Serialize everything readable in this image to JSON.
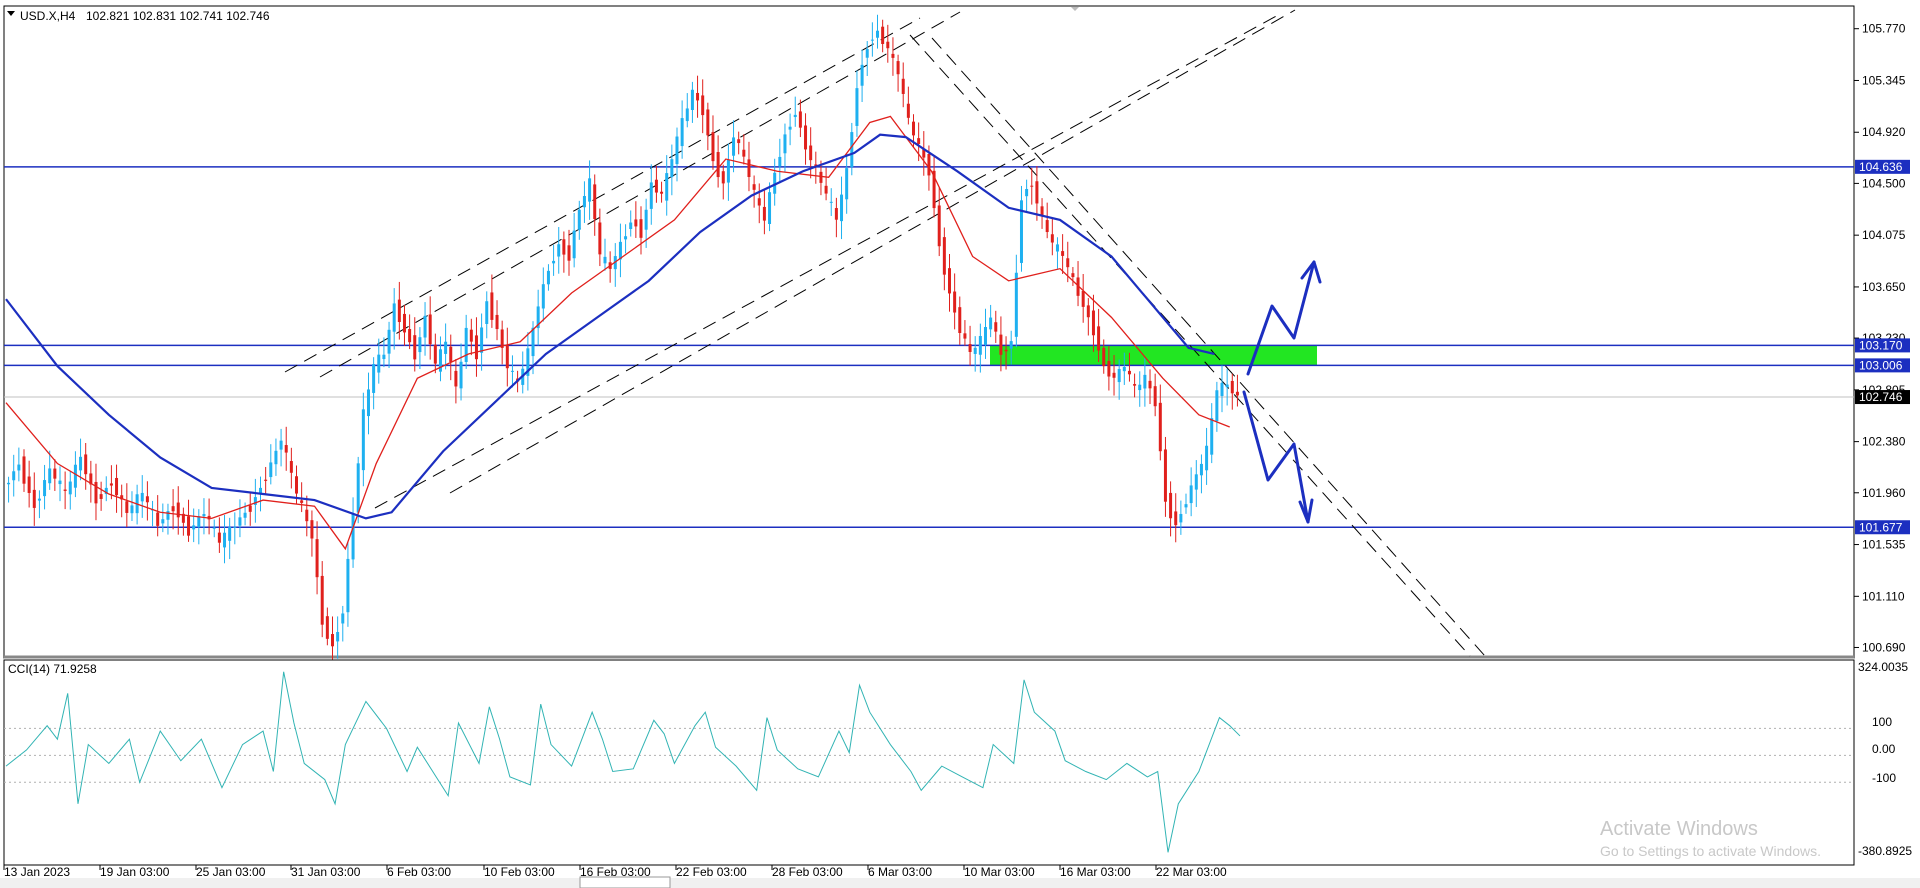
{
  "header": {
    "symbol_timeframe": "USD.X,H4",
    "ohlc": "102.821 102.831 102.741 102.746"
  },
  "indicator": {
    "label": "CCI(14) 71.9258",
    "levels": [
      "100",
      "0.00",
      "-100"
    ],
    "max_label": "324.0035",
    "min_label": "-380.8925"
  },
  "watermark": {
    "line1": "Activate Windows",
    "line2": "Go to Settings to activate Windows."
  },
  "colors": {
    "bull": "#1eb0f0",
    "bear": "#e0201c",
    "ma_slow": "#1c2fc0",
    "ma_fast": "#e0201c",
    "level": "#1c2fc0",
    "zone": "#22e622",
    "cci": "#32b4b4",
    "arrow": "#1c2fc0"
  },
  "chart_data": {
    "type": "candlestick",
    "symbol": "USD.X",
    "timeframe": "H4",
    "y_ticks": [
      "105.770",
      "105.345",
      "104.920",
      "104.500",
      "104.075",
      "103.650",
      "103.230",
      "102.805",
      "102.380",
      "101.960",
      "101.535",
      "101.110",
      "100.690"
    ],
    "y_range": [
      100.62,
      105.94
    ],
    "x_labels": [
      "13 Jan 2023",
      "19 Jan 03:00",
      "25 Jan 03:00",
      "31 Jan 03:00",
      "6 Feb 03:00",
      "10 Feb 03:00",
      "16 Feb 03:00",
      "22 Feb 03:00",
      "28 Feb 03:00",
      "6 Mar 03:00",
      "10 Mar 03:00",
      "16 Mar 03:00",
      "22 Mar 03:00"
    ],
    "price_tags": [
      {
        "label": "104.636",
        "value": 104.636,
        "style": "level"
      },
      {
        "label": "103.170",
        "value": 103.17,
        "style": "level"
      },
      {
        "label": "103.006",
        "value": 103.006,
        "style": "level"
      },
      {
        "label": "102.746",
        "value": 102.746,
        "style": "current"
      },
      {
        "label": "101.677",
        "value": 101.677,
        "style": "level"
      }
    ],
    "horizontal_levels": [
      104.636,
      103.17,
      103.006,
      101.677
    ],
    "current_price": 102.746,
    "zone": {
      "from": 103.006,
      "to": 103.17
    },
    "price_path": [
      [
        0,
        102.0
      ],
      [
        3,
        102.2
      ],
      [
        6,
        101.85
      ],
      [
        9,
        102.15
      ],
      [
        12,
        101.95
      ],
      [
        15,
        102.25
      ],
      [
        18,
        101.9
      ],
      [
        21,
        102.05
      ],
      [
        24,
        101.8
      ],
      [
        27,
        101.95
      ],
      [
        30,
        101.7
      ],
      [
        33,
        101.85
      ],
      [
        36,
        101.65
      ],
      [
        39,
        101.8
      ],
      [
        42,
        101.55
      ],
      [
        45,
        101.7
      ],
      [
        48,
        101.85
      ],
      [
        51,
        102.1
      ],
      [
        54,
        102.4
      ],
      [
        57,
        101.95
      ],
      [
        60,
        101.6
      ],
      [
        62,
        100.9
      ],
      [
        64,
        100.7
      ],
      [
        66,
        101.0
      ],
      [
        68,
        101.8
      ],
      [
        70,
        102.6
      ],
      [
        72,
        103.0
      ],
      [
        74,
        103.1
      ],
      [
        76,
        103.5
      ],
      [
        78,
        103.3
      ],
      [
        80,
        103.1
      ],
      [
        82,
        103.4
      ],
      [
        84,
        103.0
      ],
      [
        86,
        103.2
      ],
      [
        88,
        102.8
      ],
      [
        90,
        103.3
      ],
      [
        92,
        103.1
      ],
      [
        94,
        103.55
      ],
      [
        96,
        103.3
      ],
      [
        98,
        103.0
      ],
      [
        100,
        102.85
      ],
      [
        102,
        103.1
      ],
      [
        104,
        103.5
      ],
      [
        106,
        103.8
      ],
      [
        108,
        104.0
      ],
      [
        110,
        103.9
      ],
      [
        112,
        104.3
      ],
      [
        114,
        104.5
      ],
      [
        116,
        103.9
      ],
      [
        118,
        103.8
      ],
      [
        120,
        104.0
      ],
      [
        122,
        104.2
      ],
      [
        124,
        104.1
      ],
      [
        126,
        104.5
      ],
      [
        128,
        104.4
      ],
      [
        130,
        104.7
      ],
      [
        132,
        105.0
      ],
      [
        134,
        105.25
      ],
      [
        136,
        105.1
      ],
      [
        138,
        104.7
      ],
      [
        140,
        104.5
      ],
      [
        142,
        104.9
      ],
      [
        144,
        104.7
      ],
      [
        146,
        104.4
      ],
      [
        148,
        104.2
      ],
      [
        150,
        104.6
      ],
      [
        152,
        104.9
      ],
      [
        154,
        105.1
      ],
      [
        156,
        104.8
      ],
      [
        158,
        104.6
      ],
      [
        160,
        104.4
      ],
      [
        162,
        104.2
      ],
      [
        164,
        104.6
      ],
      [
        166,
        105.3
      ],
      [
        168,
        105.65
      ],
      [
        170,
        105.75
      ],
      [
        172,
        105.6
      ],
      [
        174,
        105.4
      ],
      [
        176,
        105.0
      ],
      [
        178,
        104.8
      ],
      [
        180,
        104.6
      ],
      [
        182,
        104.0
      ],
      [
        184,
        103.6
      ],
      [
        186,
        103.3
      ],
      [
        188,
        103.1
      ],
      [
        190,
        103.2
      ],
      [
        192,
        103.4
      ],
      [
        194,
        103.1
      ],
      [
        196,
        103.2
      ],
      [
        198,
        104.4
      ],
      [
        200,
        104.5
      ],
      [
        202,
        104.2
      ],
      [
        204,
        104.0
      ],
      [
        206,
        103.9
      ],
      [
        208,
        103.7
      ],
      [
        210,
        103.5
      ],
      [
        212,
        103.3
      ],
      [
        214,
        103.0
      ],
      [
        216,
        102.9
      ],
      [
        218,
        103.0
      ],
      [
        220,
        102.8
      ],
      [
        222,
        102.9
      ],
      [
        224,
        102.7
      ],
      [
        226,
        101.9
      ],
      [
        228,
        101.7
      ],
      [
        230,
        101.9
      ],
      [
        232,
        102.1
      ],
      [
        234,
        102.3
      ],
      [
        236,
        102.8
      ],
      [
        238,
        102.85
      ],
      [
        240,
        102.75
      ]
    ],
    "ma_slow": [
      [
        0,
        103.55
      ],
      [
        10,
        103.0
      ],
      [
        20,
        102.6
      ],
      [
        30,
        102.25
      ],
      [
        40,
        102.0
      ],
      [
        50,
        101.95
      ],
      [
        60,
        101.9
      ],
      [
        70,
        101.75
      ],
      [
        75,
        101.8
      ],
      [
        85,
        102.3
      ],
      [
        95,
        102.7
      ],
      [
        105,
        103.1
      ],
      [
        115,
        103.4
      ],
      [
        125,
        103.7
      ],
      [
        135,
        104.1
      ],
      [
        145,
        104.4
      ],
      [
        155,
        104.6
      ],
      [
        165,
        104.75
      ],
      [
        170,
        104.9
      ],
      [
        175,
        104.88
      ],
      [
        185,
        104.6
      ],
      [
        195,
        104.3
      ],
      [
        205,
        104.2
      ],
      [
        215,
        103.9
      ],
      [
        225,
        103.4
      ],
      [
        230,
        103.15
      ],
      [
        235,
        103.1
      ]
    ],
    "ma_fast": [
      [
        0,
        102.7
      ],
      [
        10,
        102.2
      ],
      [
        20,
        101.95
      ],
      [
        30,
        101.8
      ],
      [
        40,
        101.75
      ],
      [
        50,
        101.9
      ],
      [
        60,
        101.85
      ],
      [
        66,
        101.5
      ],
      [
        72,
        102.2
      ],
      [
        80,
        102.9
      ],
      [
        90,
        103.1
      ],
      [
        100,
        103.2
      ],
      [
        110,
        103.6
      ],
      [
        120,
        103.9
      ],
      [
        130,
        104.2
      ],
      [
        140,
        104.7
      ],
      [
        150,
        104.6
      ],
      [
        160,
        104.55
      ],
      [
        168,
        105.0
      ],
      [
        172,
        105.05
      ],
      [
        180,
        104.6
      ],
      [
        188,
        103.9
      ],
      [
        195,
        103.7
      ],
      [
        205,
        103.8
      ],
      [
        215,
        103.4
      ],
      [
        225,
        102.9
      ],
      [
        232,
        102.6
      ],
      [
        238,
        102.5
      ]
    ],
    "cci_range": [
      -380.8925,
      324.0035
    ],
    "cci_levels": [
      100,
      0,
      -100
    ],
    "cci": [
      [
        0,
        -40
      ],
      [
        4,
        20
      ],
      [
        8,
        110
      ],
      [
        10,
        60
      ],
      [
        12,
        230
      ],
      [
        14,
        -180
      ],
      [
        16,
        40
      ],
      [
        20,
        -30
      ],
      [
        24,
        60
      ],
      [
        26,
        -100
      ],
      [
        30,
        90
      ],
      [
        34,
        -20
      ],
      [
        38,
        60
      ],
      [
        42,
        -120
      ],
      [
        46,
        40
      ],
      [
        50,
        90
      ],
      [
        52,
        -60
      ],
      [
        54,
        310
      ],
      [
        56,
        120
      ],
      [
        58,
        -30
      ],
      [
        62,
        -90
      ],
      [
        64,
        -180
      ],
      [
        66,
        40
      ],
      [
        70,
        200
      ],
      [
        74,
        100
      ],
      [
        78,
        -60
      ],
      [
        80,
        30
      ],
      [
        84,
        -90
      ],
      [
        86,
        -150
      ],
      [
        88,
        120
      ],
      [
        92,
        -30
      ],
      [
        94,
        180
      ],
      [
        96,
        60
      ],
      [
        98,
        -80
      ],
      [
        102,
        -110
      ],
      [
        104,
        190
      ],
      [
        106,
        40
      ],
      [
        110,
        -40
      ],
      [
        114,
        160
      ],
      [
        116,
        60
      ],
      [
        118,
        -60
      ],
      [
        122,
        -50
      ],
      [
        126,
        130
      ],
      [
        128,
        80
      ],
      [
        130,
        -30
      ],
      [
        134,
        110
      ],
      [
        136,
        160
      ],
      [
        138,
        30
      ],
      [
        142,
        -40
      ],
      [
        146,
        -130
      ],
      [
        148,
        140
      ],
      [
        150,
        20
      ],
      [
        154,
        -50
      ],
      [
        158,
        -80
      ],
      [
        162,
        90
      ],
      [
        164,
        10
      ],
      [
        166,
        260
      ],
      [
        168,
        160
      ],
      [
        172,
        40
      ],
      [
        176,
        -60
      ],
      [
        178,
        -130
      ],
      [
        182,
        -40
      ],
      [
        186,
        -80
      ],
      [
        190,
        -120
      ],
      [
        192,
        40
      ],
      [
        196,
        -30
      ],
      [
        198,
        280
      ],
      [
        200,
        160
      ],
      [
        204,
        90
      ],
      [
        206,
        -20
      ],
      [
        210,
        -60
      ],
      [
        214,
        -90
      ],
      [
        218,
        -30
      ],
      [
        222,
        -80
      ],
      [
        224,
        -60
      ],
      [
        226,
        -360
      ],
      [
        228,
        -180
      ],
      [
        232,
        -60
      ],
      [
        236,
        140
      ],
      [
        238,
        110
      ],
      [
        240,
        72
      ]
    ]
  }
}
